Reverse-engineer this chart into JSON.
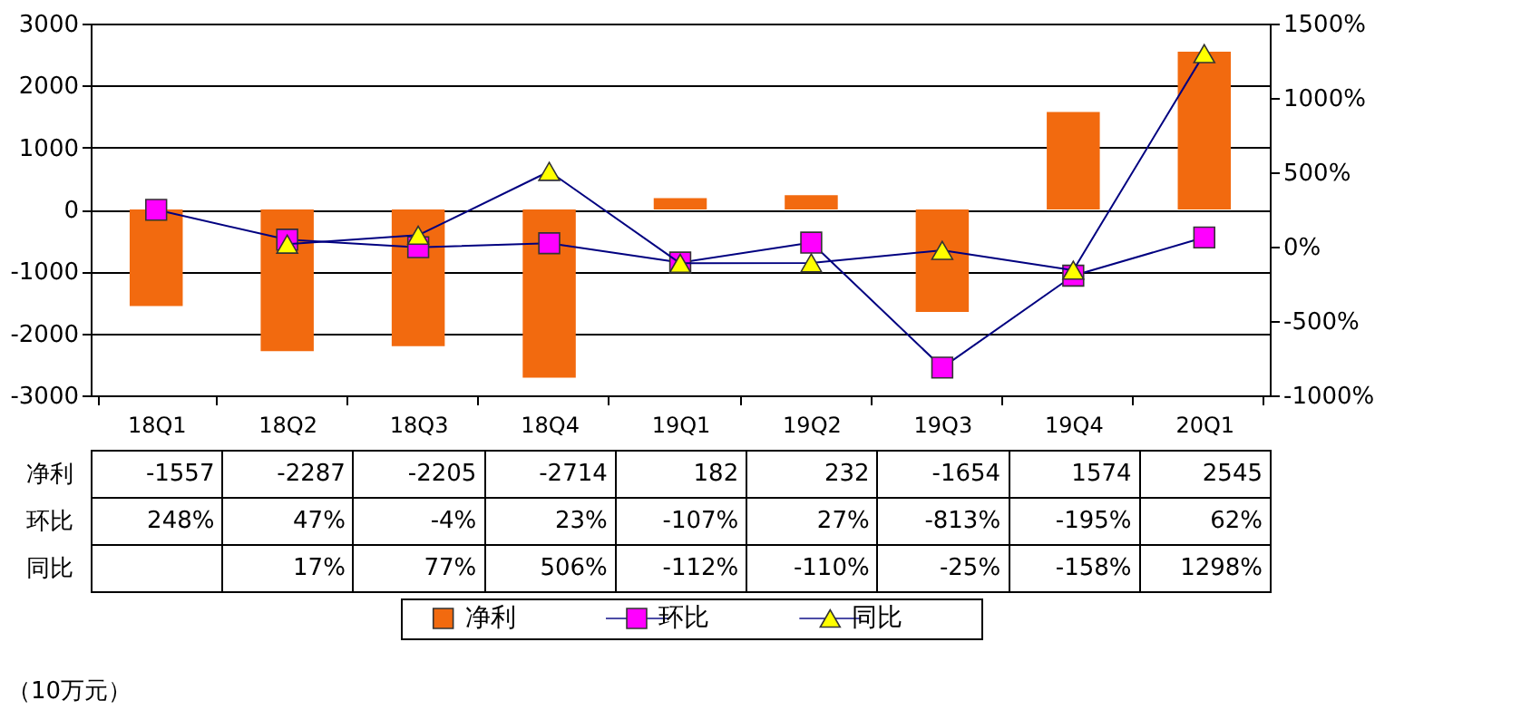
{
  "chart_data": {
    "type": "bar",
    "categories": [
      "18Q1",
      "18Q2",
      "18Q3",
      "18Q4",
      "19Q1",
      "19Q2",
      "19Q3",
      "19Q4",
      "20Q1"
    ],
    "series": [
      {
        "name": "净利",
        "color": "#f26a0f",
        "values": [
          -1557,
          -2287,
          -2205,
          -2714,
          182,
          232,
          -1654,
          1574,
          2545
        ],
        "value_labels": [
          "-1557",
          "-2287",
          "-2205",
          "-2714",
          "182",
          "232",
          "-1654",
          "1574",
          "2545"
        ]
      },
      {
        "name": "环比",
        "type": "line",
        "axis": "y2",
        "marker": "square",
        "color": "#ff00ff",
        "values": [
          248,
          47,
          -4,
          23,
          -107,
          27,
          -813,
          -195,
          62
        ],
        "value_labels": [
          "248%",
          "47%",
          "-4%",
          "23%",
          "-107%",
          "27%",
          "-813%",
          "-195%",
          "62%"
        ]
      },
      {
        "name": "同比",
        "type": "line",
        "axis": "y2",
        "marker": "triangle",
        "color": "#ffff00",
        "values": [
          null,
          17,
          77,
          506,
          -112,
          -110,
          -25,
          -158,
          1298
        ],
        "value_labels": [
          null,
          "17%",
          "77%",
          "506%",
          "-112%",
          "-110%",
          "-25%",
          "-158%",
          "1298%"
        ]
      }
    ],
    "ylim": [
      -3000,
      3000
    ],
    "yticks": [
      {
        "value": -3000,
        "label": "-3000"
      },
      {
        "value": -2000,
        "label": "-2000"
      },
      {
        "value": -1000,
        "label": "-1000"
      },
      0,
      {
        "value": 1000,
        "label": "1000"
      },
      {
        "value": 2000,
        "label": "2000"
      },
      {
        "value": 3000,
        "label": "3000"
      }
    ],
    "y2lim": [
      -1000,
      1500
    ],
    "y2ticks": [
      {
        "value": -1000,
        "label": "-1000%"
      },
      {
        "value": -500,
        "label": "-500%"
      },
      {
        "value": 0,
        "label": "0%"
      },
      {
        "value": 500,
        "label": "500%"
      },
      {
        "value": 1000,
        "label": "1000%"
      },
      {
        "value": 1500,
        "label": "1500%"
      }
    ],
    "grid": "y",
    "legend": "bottom",
    "annotations": [
      "（10万元）"
    ]
  }
}
